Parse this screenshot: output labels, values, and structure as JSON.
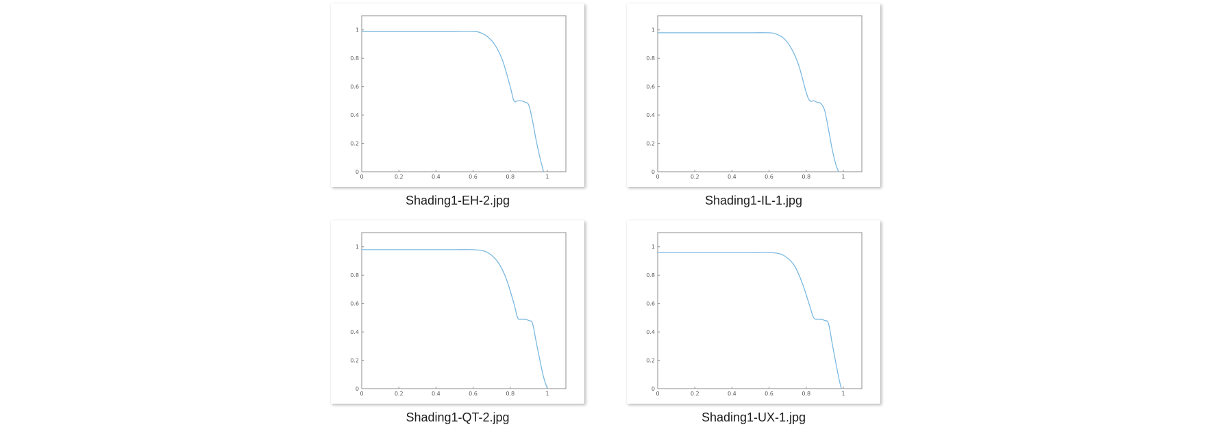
{
  "files": [
    {
      "name": "Shading1-EH-2.jpg",
      "chart": {
        "type": "line",
        "x": [
          0,
          0.1,
          0.2,
          0.3,
          0.4,
          0.5,
          0.6,
          0.64,
          0.68,
          0.72,
          0.76,
          0.8,
          0.82,
          0.84,
          0.86,
          0.88,
          0.9,
          0.92,
          0.94,
          0.96,
          0.98
        ],
        "y": [
          0.99,
          0.99,
          0.99,
          0.99,
          0.99,
          0.99,
          0.99,
          0.98,
          0.95,
          0.89,
          0.78,
          0.6,
          0.5,
          0.5,
          0.5,
          0.49,
          0.47,
          0.36,
          0.22,
          0.1,
          0.0
        ]
      }
    },
    {
      "name": "Shading1-IL-1.jpg",
      "chart": {
        "type": "line",
        "x": [
          0,
          0.1,
          0.2,
          0.3,
          0.4,
          0.5,
          0.6,
          0.64,
          0.68,
          0.72,
          0.76,
          0.8,
          0.82,
          0.84,
          0.86,
          0.88,
          0.9,
          0.92,
          0.94,
          0.96,
          0.975
        ],
        "y": [
          0.98,
          0.98,
          0.98,
          0.98,
          0.98,
          0.98,
          0.98,
          0.97,
          0.94,
          0.87,
          0.75,
          0.56,
          0.5,
          0.5,
          0.49,
          0.48,
          0.43,
          0.3,
          0.16,
          0.05,
          0.0
        ]
      }
    },
    {
      "name": "Shading1-QT-2.jpg",
      "chart": {
        "type": "line",
        "x": [
          0,
          0.1,
          0.2,
          0.3,
          0.4,
          0.5,
          0.6,
          0.66,
          0.7,
          0.74,
          0.78,
          0.82,
          0.84,
          0.86,
          0.88,
          0.9,
          0.92,
          0.94,
          0.96,
          0.98,
          1.0
        ],
        "y": [
          0.98,
          0.98,
          0.98,
          0.98,
          0.98,
          0.98,
          0.98,
          0.97,
          0.94,
          0.88,
          0.77,
          0.6,
          0.5,
          0.49,
          0.49,
          0.48,
          0.46,
          0.33,
          0.2,
          0.08,
          0.0
        ]
      }
    },
    {
      "name": "Shading1-UX-1.jpg",
      "chart": {
        "type": "line",
        "x": [
          0,
          0.1,
          0.2,
          0.3,
          0.4,
          0.5,
          0.6,
          0.66,
          0.7,
          0.74,
          0.78,
          0.82,
          0.84,
          0.86,
          0.88,
          0.9,
          0.92,
          0.94,
          0.96,
          0.98,
          0.99
        ],
        "y": [
          0.96,
          0.96,
          0.96,
          0.96,
          0.96,
          0.96,
          0.96,
          0.95,
          0.92,
          0.86,
          0.74,
          0.58,
          0.5,
          0.49,
          0.49,
          0.48,
          0.46,
          0.32,
          0.18,
          0.05,
          0.0
        ]
      }
    }
  ],
  "chart_axes": {
    "xlim": [
      0,
      1.1
    ],
    "ylim": [
      0,
      1.1
    ],
    "xticks": [
      0,
      0.2,
      0.4,
      0.6,
      0.8,
      1
    ],
    "xtick_labels": [
      "0",
      "0.2",
      "0.4",
      "0.6",
      "0.8",
      "1"
    ],
    "yticks": [
      0,
      0.2,
      0.4,
      0.6,
      0.8,
      1
    ],
    "ytick_labels": [
      "0",
      "0.2",
      "0.4",
      "0.6",
      "0.8",
      "1"
    ],
    "grid": false,
    "line_color": "#7ab8e0"
  },
  "chart_data": [
    {
      "type": "line",
      "title": "",
      "xlabel": "",
      "ylabel": "",
      "xlim": [
        0,
        1.1
      ],
      "ylim": [
        0,
        1.1
      ],
      "x": [
        0,
        0.1,
        0.2,
        0.3,
        0.4,
        0.5,
        0.6,
        0.64,
        0.68,
        0.72,
        0.76,
        0.8,
        0.82,
        0.84,
        0.86,
        0.88,
        0.9,
        0.92,
        0.94,
        0.96,
        0.98
      ],
      "series": [
        {
          "values": [
            0.99,
            0.99,
            0.99,
            0.99,
            0.99,
            0.99,
            0.99,
            0.98,
            0.95,
            0.89,
            0.78,
            0.6,
            0.5,
            0.5,
            0.5,
            0.49,
            0.47,
            0.36,
            0.22,
            0.1,
            0.0
          ]
        }
      ]
    },
    {
      "type": "line",
      "title": "",
      "xlabel": "",
      "ylabel": "",
      "xlim": [
        0,
        1.1
      ],
      "ylim": [
        0,
        1.1
      ],
      "x": [
        0,
        0.1,
        0.2,
        0.3,
        0.4,
        0.5,
        0.6,
        0.64,
        0.68,
        0.72,
        0.76,
        0.8,
        0.82,
        0.84,
        0.86,
        0.88,
        0.9,
        0.92,
        0.94,
        0.96,
        0.975
      ],
      "series": [
        {
          "values": [
            0.98,
            0.98,
            0.98,
            0.98,
            0.98,
            0.98,
            0.98,
            0.97,
            0.94,
            0.87,
            0.75,
            0.56,
            0.5,
            0.5,
            0.49,
            0.48,
            0.43,
            0.3,
            0.16,
            0.05,
            0.0
          ]
        }
      ]
    },
    {
      "type": "line",
      "title": "",
      "xlabel": "",
      "ylabel": "",
      "xlim": [
        0,
        1.1
      ],
      "ylim": [
        0,
        1.1
      ],
      "x": [
        0,
        0.1,
        0.2,
        0.3,
        0.4,
        0.5,
        0.6,
        0.66,
        0.7,
        0.74,
        0.78,
        0.82,
        0.84,
        0.86,
        0.88,
        0.9,
        0.92,
        0.94,
        0.96,
        0.98,
        1.0
      ],
      "series": [
        {
          "values": [
            0.98,
            0.98,
            0.98,
            0.98,
            0.98,
            0.98,
            0.98,
            0.97,
            0.94,
            0.88,
            0.77,
            0.6,
            0.5,
            0.49,
            0.49,
            0.48,
            0.46,
            0.33,
            0.2,
            0.08,
            0.0
          ]
        }
      ]
    },
    {
      "type": "line",
      "title": "",
      "xlabel": "",
      "ylabel": "",
      "xlim": [
        0,
        1.1
      ],
      "ylim": [
        0,
        1.1
      ],
      "x": [
        0,
        0.1,
        0.2,
        0.3,
        0.4,
        0.5,
        0.6,
        0.66,
        0.7,
        0.74,
        0.78,
        0.82,
        0.84,
        0.86,
        0.88,
        0.9,
        0.92,
        0.94,
        0.96,
        0.98,
        0.99
      ],
      "series": [
        {
          "values": [
            0.96,
            0.96,
            0.96,
            0.96,
            0.96,
            0.96,
            0.96,
            0.95,
            0.92,
            0.86,
            0.74,
            0.58,
            0.5,
            0.49,
            0.49,
            0.48,
            0.46,
            0.32,
            0.18,
            0.05,
            0.0
          ]
        }
      ]
    }
  ]
}
